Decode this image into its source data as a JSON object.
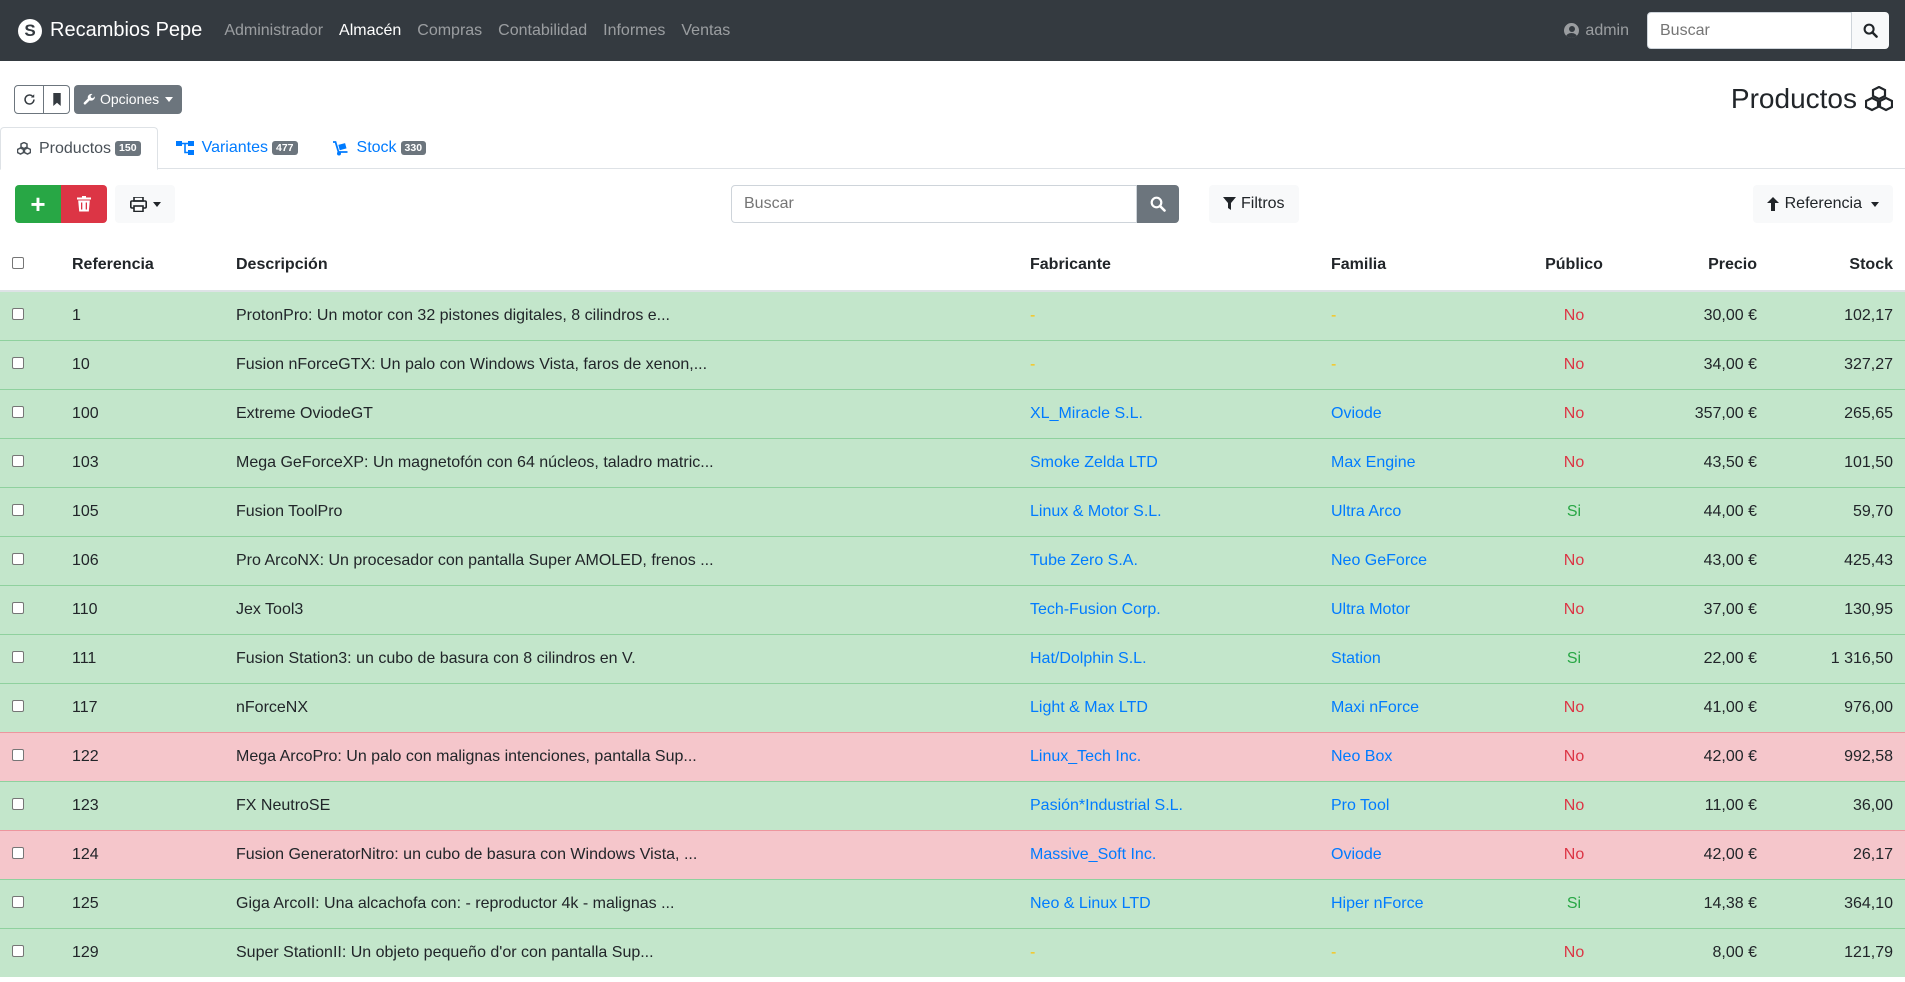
{
  "navbar": {
    "brand": "Recambios Pepe",
    "logo_letter": "S",
    "menu": [
      "Administrador",
      "Almacén",
      "Compras",
      "Contabilidad",
      "Informes",
      "Ventas"
    ],
    "active_menu": "Almacén",
    "user": "admin",
    "search_placeholder": "Buscar"
  },
  "toolbar": {
    "options_label": "Opciones",
    "page_title": "Productos"
  },
  "tabs": [
    {
      "label": "Productos",
      "count": "150",
      "active": true
    },
    {
      "label": "Variantes",
      "count": "477",
      "active": false
    },
    {
      "label": "Stock",
      "count": "330",
      "active": false
    }
  ],
  "actions": {
    "add_label": "+",
    "search_placeholder": "Buscar",
    "filter_label": "Filtros",
    "sort_label": "Referencia"
  },
  "colors": {
    "success_row": "#c3e6cb",
    "danger_row": "#f5c6cb",
    "link": "#007bff",
    "navbar": "#343a40"
  },
  "table": {
    "headers": [
      "Referencia",
      "Descripción",
      "Fabricante",
      "Familia",
      "Público",
      "Precio",
      "Stock"
    ],
    "rows": [
      {
        "ref": "1",
        "desc": "ProtonPro: Un motor con 32 pistones digitales, 8 cilindros e...",
        "fab": "-",
        "fam": "-",
        "pub": "No",
        "precio": "30,00 €",
        "stock": "102,17",
        "status": "ok"
      },
      {
        "ref": "10",
        "desc": "Fusion nForceGTX: Un palo con Windows Vista, faros de xenon,...",
        "fab": "-",
        "fam": "-",
        "pub": "No",
        "precio": "34,00 €",
        "stock": "327,27",
        "status": "ok"
      },
      {
        "ref": "100",
        "desc": "Extreme OviodeGT",
        "fab": "XL_Miracle S.L.",
        "fam": "Oviode",
        "pub": "No",
        "precio": "357,00 €",
        "stock": "265,65",
        "status": "ok"
      },
      {
        "ref": "103",
        "desc": "Mega GeForceXP: Un magnetofón con 64 núcleos, taladro matric...",
        "fab": "Smoke Zelda LTD",
        "fam": "Max Engine",
        "pub": "No",
        "precio": "43,50 €",
        "stock": "101,50",
        "status": "ok"
      },
      {
        "ref": "105",
        "desc": "Fusion ToolPro",
        "fab": "Linux & Motor S.L.",
        "fam": "Ultra Arco",
        "pub": "Si",
        "precio": "44,00 €",
        "stock": "59,70",
        "status": "ok"
      },
      {
        "ref": "106",
        "desc": "Pro ArcoNX: Un procesador con pantalla Super AMOLED, frenos ...",
        "fab": "Tube Zero S.A.",
        "fam": "Neo GeForce",
        "pub": "No",
        "precio": "43,00 €",
        "stock": "425,43",
        "status": "ok"
      },
      {
        "ref": "110",
        "desc": "Jex Tool3",
        "fab": "Tech-Fusion Corp.",
        "fam": "Ultra Motor",
        "pub": "No",
        "precio": "37,00 €",
        "stock": "130,95",
        "status": "ok"
      },
      {
        "ref": "111",
        "desc": "Fusion Station3: un cubo de basura con 8 cilindros en V.",
        "fab": "Hat/Dolphin S.L.",
        "fam": "Station",
        "pub": "Si",
        "precio": "22,00 €",
        "stock": "1 316,50",
        "status": "ok"
      },
      {
        "ref": "117",
        "desc": "nForceNX",
        "fab": "Light & Max LTD",
        "fam": "Maxi nForce",
        "pub": "No",
        "precio": "41,00 €",
        "stock": "976,00",
        "status": "ok"
      },
      {
        "ref": "122",
        "desc": "Mega ArcoPro: Un palo con malignas intenciones, pantalla Sup...",
        "fab": "Linux_Tech Inc.",
        "fam": "Neo Box",
        "pub": "No",
        "precio": "42,00 €",
        "stock": "992,58",
        "status": "bad"
      },
      {
        "ref": "123",
        "desc": "FX NeutroSE",
        "fab": "Pasión*Industrial S.L.",
        "fam": "Pro Tool",
        "pub": "No",
        "precio": "11,00 €",
        "stock": "36,00",
        "status": "ok"
      },
      {
        "ref": "124",
        "desc": "Fusion GeneratorNitro: un cubo de basura con Windows Vista, ...",
        "fab": "Massive_Soft Inc.",
        "fam": "Oviode",
        "pub": "No",
        "precio": "42,00 €",
        "stock": "26,17",
        "status": "bad"
      },
      {
        "ref": "125",
        "desc": "Giga ArcoII: Una alcachofa con: - reproductor 4k - malignas ...",
        "fab": "Neo & Linux LTD",
        "fam": "Hiper nForce",
        "pub": "Si",
        "precio": "14,38 €",
        "stock": "364,10",
        "status": "ok"
      },
      {
        "ref": "129",
        "desc": "Super StationII: Un objeto pequeño d'or con pantalla Sup...",
        "fab": "-",
        "fam": "-",
        "pub": "No",
        "precio": "8,00 €",
        "stock": "121,79",
        "status": "ok"
      }
    ]
  }
}
